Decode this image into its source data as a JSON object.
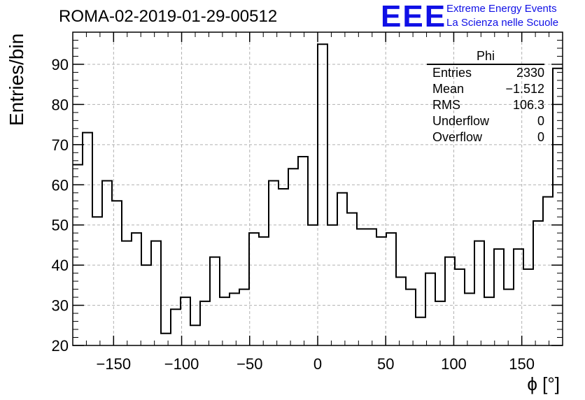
{
  "header": {
    "title": "ROMA-02-2019-01-29-00512",
    "logo_text": "EEE",
    "logo_line1": "Extreme Energy Events",
    "logo_line2": "La Scienza nelle Scuole"
  },
  "stats_box": {
    "title": "Phi",
    "rows": [
      {
        "label": "Entries",
        "value": "2330"
      },
      {
        "label": "Mean",
        "value": "−1.512"
      },
      {
        "label": "RMS",
        "value": "106.3"
      },
      {
        "label": "Underflow",
        "value": "0"
      },
      {
        "label": "Overflow",
        "value": "0"
      }
    ]
  },
  "chart_data": {
    "type": "histogram",
    "title": "ROMA-02-2019-01-29-00512",
    "xlabel": "ϕ [°]",
    "ylabel": "Entries/bin",
    "xlim": [
      -180,
      180
    ],
    "ylim": [
      20,
      98
    ],
    "bin_edges_start": -180,
    "bin_width": 7.2,
    "values": [
      65,
      73,
      52,
      61,
      56,
      46,
      48,
      40,
      46,
      23,
      29,
      32,
      25,
      31,
      42,
      32,
      33,
      34,
      48,
      47,
      61,
      59,
      64,
      67,
      50,
      95,
      50,
      58,
      53,
      49,
      49,
      47,
      48,
      37,
      34,
      27,
      38,
      31,
      42,
      39,
      33,
      46,
      32,
      44,
      34,
      44,
      39,
      51,
      57,
      89
    ],
    "x_ticks": [
      -150,
      -100,
      -50,
      0,
      50,
      100,
      150
    ],
    "x_tick_labels": [
      "−150",
      "−100",
      "−50",
      "0",
      "50",
      "100",
      "150"
    ],
    "y_ticks": [
      20,
      30,
      40,
      50,
      60,
      70,
      80,
      90
    ],
    "y_tick_labels": [
      "20",
      "30",
      "40",
      "50",
      "60",
      "70",
      "80",
      "90"
    ],
    "grid": true,
    "line_color": "#000000"
  }
}
